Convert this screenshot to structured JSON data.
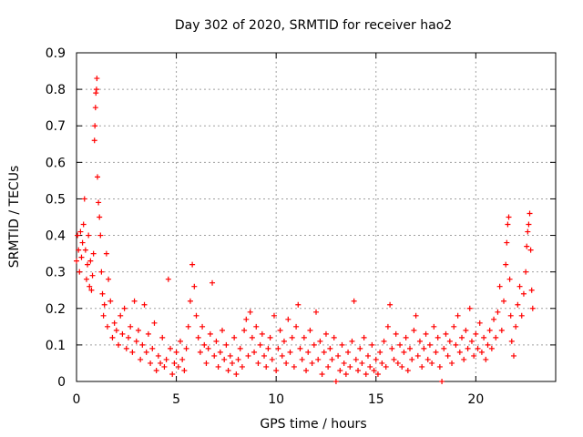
{
  "chart_data": {
    "type": "scatter",
    "title": "Day 302 of 2020, SRMTID for receiver hao2",
    "xlabel": "GPS time / hours",
    "ylabel": "SRMTID / TECUs",
    "xlim": [
      0,
      24
    ],
    "ylim": [
      0,
      0.9
    ],
    "xticks": [
      0,
      5,
      10,
      15,
      20
    ],
    "xtick_labels": [
      "0",
      "5",
      "10",
      "15",
      "20"
    ],
    "yticks": [
      0,
      0.1,
      0.2,
      0.3,
      0.4,
      0.5,
      0.6,
      0.7,
      0.8,
      0.9
    ],
    "ytick_labels": [
      "0",
      "0.1",
      "0.2",
      "0.3",
      "0.4",
      "0.5",
      "0.6",
      "0.7",
      "0.8",
      "0.9"
    ],
    "grid": true,
    "marker": "+",
    "color": "#ff0000",
    "series": [
      {
        "name": "SRMTID",
        "points": [
          [
            0.0,
            0.33
          ],
          [
            0.05,
            0.4
          ],
          [
            0.1,
            0.36
          ],
          [
            0.15,
            0.3
          ],
          [
            0.2,
            0.41
          ],
          [
            0.25,
            0.34
          ],
          [
            0.3,
            0.38
          ],
          [
            0.35,
            0.43
          ],
          [
            0.4,
            0.5
          ],
          [
            0.45,
            0.36
          ],
          [
            0.5,
            0.28
          ],
          [
            0.55,
            0.32
          ],
          [
            0.6,
            0.4
          ],
          [
            0.65,
            0.26
          ],
          [
            0.7,
            0.33
          ],
          [
            0.75,
            0.25
          ],
          [
            0.8,
            0.29
          ],
          [
            0.85,
            0.35
          ],
          [
            0.9,
            0.66
          ],
          [
            0.92,
            0.7
          ],
          [
            0.95,
            0.75
          ],
          [
            0.97,
            0.79
          ],
          [
            1.0,
            0.8
          ],
          [
            1.02,
            0.83
          ],
          [
            1.05,
            0.56
          ],
          [
            1.1,
            0.49
          ],
          [
            1.15,
            0.45
          ],
          [
            1.2,
            0.4
          ],
          [
            1.25,
            0.3
          ],
          [
            1.3,
            0.24
          ],
          [
            1.35,
            0.18
          ],
          [
            1.4,
            0.21
          ],
          [
            1.5,
            0.35
          ],
          [
            1.55,
            0.15
          ],
          [
            1.6,
            0.28
          ],
          [
            1.7,
            0.22
          ],
          [
            1.8,
            0.12
          ],
          [
            1.9,
            0.16
          ],
          [
            2.0,
            0.14
          ],
          [
            2.1,
            0.1
          ],
          [
            2.2,
            0.18
          ],
          [
            2.3,
            0.13
          ],
          [
            2.4,
            0.2
          ],
          [
            2.5,
            0.09
          ],
          [
            2.6,
            0.12
          ],
          [
            2.7,
            0.15
          ],
          [
            2.8,
            0.08
          ],
          [
            2.9,
            0.22
          ],
          [
            3.0,
            0.11
          ],
          [
            3.1,
            0.14
          ],
          [
            3.2,
            0.06
          ],
          [
            3.3,
            0.1
          ],
          [
            3.4,
            0.21
          ],
          [
            3.5,
            0.08
          ],
          [
            3.6,
            0.13
          ],
          [
            3.7,
            0.05
          ],
          [
            3.8,
            0.09
          ],
          [
            3.9,
            0.16
          ],
          [
            4.0,
            0.03
          ],
          [
            4.1,
            0.07
          ],
          [
            4.2,
            0.05
          ],
          [
            4.3,
            0.12
          ],
          [
            4.4,
            0.04
          ],
          [
            4.5,
            0.06
          ],
          [
            4.6,
            0.28
          ],
          [
            4.7,
            0.09
          ],
          [
            4.8,
            0.02
          ],
          [
            4.9,
            0.05
          ],
          [
            5.0,
            0.08
          ],
          [
            5.1,
            0.04
          ],
          [
            5.2,
            0.11
          ],
          [
            5.3,
            0.06
          ],
          [
            5.4,
            0.03
          ],
          [
            5.5,
            0.09
          ],
          [
            5.6,
            0.15
          ],
          [
            5.7,
            0.22
          ],
          [
            5.8,
            0.32
          ],
          [
            5.9,
            0.26
          ],
          [
            6.0,
            0.18
          ],
          [
            6.1,
            0.12
          ],
          [
            6.2,
            0.08
          ],
          [
            6.3,
            0.15
          ],
          [
            6.4,
            0.1
          ],
          [
            6.5,
            0.05
          ],
          [
            6.6,
            0.09
          ],
          [
            6.7,
            0.13
          ],
          [
            6.8,
            0.27
          ],
          [
            6.9,
            0.07
          ],
          [
            7.0,
            0.11
          ],
          [
            7.1,
            0.04
          ],
          [
            7.2,
            0.08
          ],
          [
            7.3,
            0.14
          ],
          [
            7.4,
            0.06
          ],
          [
            7.5,
            0.1
          ],
          [
            7.6,
            0.03
          ],
          [
            7.7,
            0.07
          ],
          [
            7.8,
            0.05
          ],
          [
            7.9,
            0.12
          ],
          [
            8.0,
            0.02
          ],
          [
            8.1,
            0.06
          ],
          [
            8.2,
            0.09
          ],
          [
            8.3,
            0.04
          ],
          [
            8.4,
            0.14
          ],
          [
            8.5,
            0.17
          ],
          [
            8.6,
            0.07
          ],
          [
            8.7,
            0.19
          ],
          [
            8.8,
            0.12
          ],
          [
            8.9,
            0.08
          ],
          [
            9.0,
            0.15
          ],
          [
            9.1,
            0.05
          ],
          [
            9.2,
            0.1
          ],
          [
            9.3,
            0.13
          ],
          [
            9.4,
            0.07
          ],
          [
            9.5,
            0.04
          ],
          [
            9.6,
            0.09
          ],
          [
            9.7,
            0.12
          ],
          [
            9.8,
            0.06
          ],
          [
            9.9,
            0.18
          ],
          [
            10.0,
            0.03
          ],
          [
            10.1,
            0.09
          ],
          [
            10.2,
            0.14
          ],
          [
            10.3,
            0.07
          ],
          [
            10.4,
            0.11
          ],
          [
            10.5,
            0.05
          ],
          [
            10.6,
            0.17
          ],
          [
            10.7,
            0.08
          ],
          [
            10.8,
            0.12
          ],
          [
            10.9,
            0.04
          ],
          [
            11.0,
            0.15
          ],
          [
            11.1,
            0.21
          ],
          [
            11.2,
            0.09
          ],
          [
            11.3,
            0.06
          ],
          [
            11.4,
            0.12
          ],
          [
            11.5,
            0.03
          ],
          [
            11.6,
            0.08
          ],
          [
            11.7,
            0.14
          ],
          [
            11.8,
            0.05
          ],
          [
            11.9,
            0.1
          ],
          [
            12.0,
            0.19
          ],
          [
            12.1,
            0.06
          ],
          [
            12.2,
            0.11
          ],
          [
            12.3,
            0.02
          ],
          [
            12.4,
            0.08
          ],
          [
            12.5,
            0.13
          ],
          [
            12.6,
            0.04
          ],
          [
            12.7,
            0.09
          ],
          [
            12.8,
            0.06
          ],
          [
            12.9,
            0.12
          ],
          [
            13.0,
            0.0
          ],
          [
            13.1,
            0.07
          ],
          [
            13.2,
            0.03
          ],
          [
            13.3,
            0.1
          ],
          [
            13.4,
            0.05
          ],
          [
            13.5,
            0.02
          ],
          [
            13.6,
            0.08
          ],
          [
            13.7,
            0.04
          ],
          [
            13.8,
            0.11
          ],
          [
            13.9,
            0.22
          ],
          [
            14.0,
            0.06
          ],
          [
            14.1,
            0.03
          ],
          [
            14.2,
            0.09
          ],
          [
            14.3,
            0.05
          ],
          [
            14.4,
            0.12
          ],
          [
            14.5,
            0.02
          ],
          [
            14.6,
            0.07
          ],
          [
            14.7,
            0.04
          ],
          [
            14.8,
            0.1
          ],
          [
            14.9,
            0.03
          ],
          [
            15.0,
            0.06
          ],
          [
            15.1,
            0.02
          ],
          [
            15.2,
            0.08
          ],
          [
            15.3,
            0.05
          ],
          [
            15.4,
            0.11
          ],
          [
            15.5,
            0.04
          ],
          [
            15.6,
            0.15
          ],
          [
            15.7,
            0.21
          ],
          [
            15.8,
            0.09
          ],
          [
            15.9,
            0.06
          ],
          [
            16.0,
            0.13
          ],
          [
            16.1,
            0.05
          ],
          [
            16.2,
            0.1
          ],
          [
            16.3,
            0.04
          ],
          [
            16.4,
            0.08
          ],
          [
            16.5,
            0.12
          ],
          [
            16.6,
            0.03
          ],
          [
            16.7,
            0.09
          ],
          [
            16.8,
            0.06
          ],
          [
            16.9,
            0.14
          ],
          [
            17.0,
            0.18
          ],
          [
            17.1,
            0.07
          ],
          [
            17.2,
            0.11
          ],
          [
            17.3,
            0.04
          ],
          [
            17.4,
            0.09
          ],
          [
            17.5,
            0.13
          ],
          [
            17.6,
            0.06
          ],
          [
            17.7,
            0.1
          ],
          [
            17.8,
            0.05
          ],
          [
            17.9,
            0.15
          ],
          [
            18.0,
            0.08
          ],
          [
            18.1,
            0.12
          ],
          [
            18.2,
            0.04
          ],
          [
            18.3,
            0.0
          ],
          [
            18.4,
            0.09
          ],
          [
            18.5,
            0.13
          ],
          [
            18.6,
            0.07
          ],
          [
            18.7,
            0.11
          ],
          [
            18.8,
            0.05
          ],
          [
            18.9,
            0.15
          ],
          [
            19.0,
            0.1
          ],
          [
            19.1,
            0.18
          ],
          [
            19.2,
            0.08
          ],
          [
            19.3,
            0.12
          ],
          [
            19.4,
            0.06
          ],
          [
            19.5,
            0.14
          ],
          [
            19.6,
            0.09
          ],
          [
            19.7,
            0.2
          ],
          [
            19.8,
            0.11
          ],
          [
            19.9,
            0.07
          ],
          [
            20.0,
            0.13
          ],
          [
            20.1,
            0.09
          ],
          [
            20.2,
            0.16
          ],
          [
            20.3,
            0.08
          ],
          [
            20.4,
            0.12
          ],
          [
            20.5,
            0.06
          ],
          [
            20.6,
            0.1
          ],
          [
            20.7,
            0.14
          ],
          [
            20.8,
            0.09
          ],
          [
            20.9,
            0.17
          ],
          [
            21.0,
            0.12
          ],
          [
            21.1,
            0.19
          ],
          [
            21.2,
            0.26
          ],
          [
            21.3,
            0.14
          ],
          [
            21.4,
            0.22
          ],
          [
            21.5,
            0.32
          ],
          [
            21.55,
            0.38
          ],
          [
            21.6,
            0.43
          ],
          [
            21.65,
            0.45
          ],
          [
            21.7,
            0.28
          ],
          [
            21.75,
            0.18
          ],
          [
            21.8,
            0.11
          ],
          [
            21.9,
            0.07
          ],
          [
            22.0,
            0.15
          ],
          [
            22.1,
            0.21
          ],
          [
            22.2,
            0.26
          ],
          [
            22.3,
            0.18
          ],
          [
            22.4,
            0.24
          ],
          [
            22.5,
            0.3
          ],
          [
            22.55,
            0.37
          ],
          [
            22.6,
            0.41
          ],
          [
            22.65,
            0.43
          ],
          [
            22.7,
            0.46
          ],
          [
            22.75,
            0.36
          ],
          [
            22.8,
            0.25
          ],
          [
            22.85,
            0.2
          ]
        ]
      }
    ]
  }
}
